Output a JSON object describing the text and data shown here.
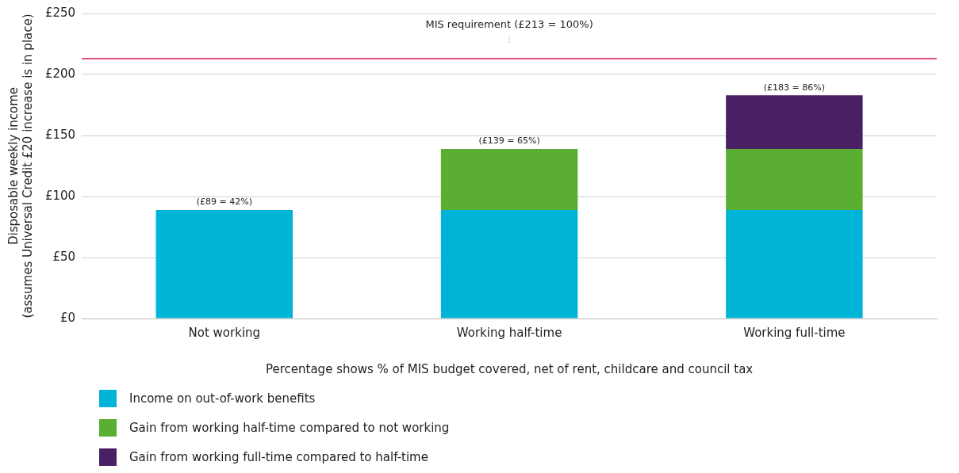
{
  "chart_data": {
    "type": "bar",
    "stacked": true,
    "ylabel": "Disposable weekly income\n(assumes Universal Credit £20 increase is in place)",
    "xlabel": "Percentage shows % of MIS budget covered, net of rent, childcare and council tax",
    "categories": [
      "Not working",
      "Working half-time",
      "Working full-time"
    ],
    "series": [
      {
        "name": "Income on out-of-work benefits",
        "color": "#00b4d8",
        "values": [
          89,
          89,
          89
        ]
      },
      {
        "name": "Gain from working half-time compared to not working",
        "color": "#5aaf32",
        "values": [
          null,
          50,
          50
        ]
      },
      {
        "name": "Gain from working full-time compared to half-time",
        "color": "#4a2065",
        "values": [
          null,
          null,
          44
        ]
      }
    ],
    "totals": [
      "(£89 = 42%)",
      "(£139 = 65%)",
      "(£183 = 86%)"
    ],
    "ylim": [
      0,
      250
    ],
    "yticks": [
      {
        "value": 0,
        "label": "£0"
      },
      {
        "value": 50,
        "label": "£50"
      },
      {
        "value": 100,
        "label": "£100"
      },
      {
        "value": 150,
        "label": "£150"
      },
      {
        "value": 200,
        "label": "£200"
      },
      {
        "value": 250,
        "label": "£250"
      }
    ],
    "ref_lines": [
      {
        "axis": "y",
        "value": 213,
        "label": "MIS requirement (£213 = 100%)",
        "color": "#d4145a"
      }
    ],
    "grid": "y",
    "legend": "bottom"
  }
}
